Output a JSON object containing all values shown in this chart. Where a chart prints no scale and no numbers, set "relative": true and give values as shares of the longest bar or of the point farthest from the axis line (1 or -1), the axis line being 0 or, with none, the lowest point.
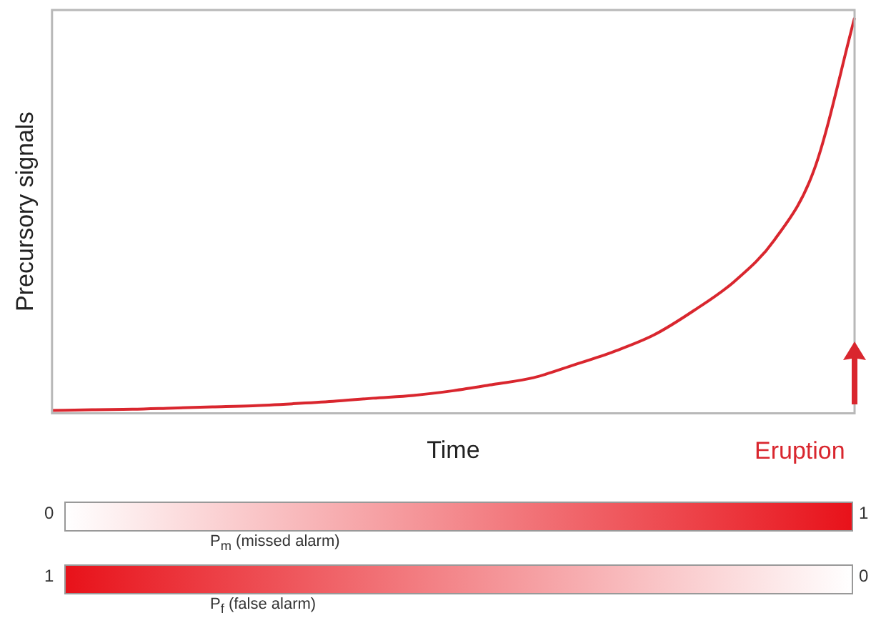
{
  "chart_data": {
    "type": "line",
    "relative": true,
    "xlabel": "Time",
    "ylabel": "Precursory signals",
    "color": "#d9262e",
    "marker": "none",
    "line_style": "solid",
    "grid": false,
    "legend": false,
    "categories": [
      null,
      null,
      null,
      null,
      null,
      null,
      null,
      null,
      null,
      null,
      null,
      null,
      null,
      null,
      null,
      null,
      null,
      null,
      null,
      null,
      null
    ],
    "values": [
      0.007,
      0.009,
      0.01,
      0.013,
      0.016,
      0.019,
      0.024,
      0.03,
      0.038,
      0.045,
      0.057,
      0.073,
      0.09,
      0.122,
      0.156,
      0.198,
      0.26,
      0.333,
      0.438,
      0.618,
      1
    ],
    "annotations": [
      "Eruption",
      "0",
      "1",
      "P$_{m}$ (missed alarm)",
      "1",
      "0",
      "P$_{f}$ (false alarm)"
    ]
  }
}
